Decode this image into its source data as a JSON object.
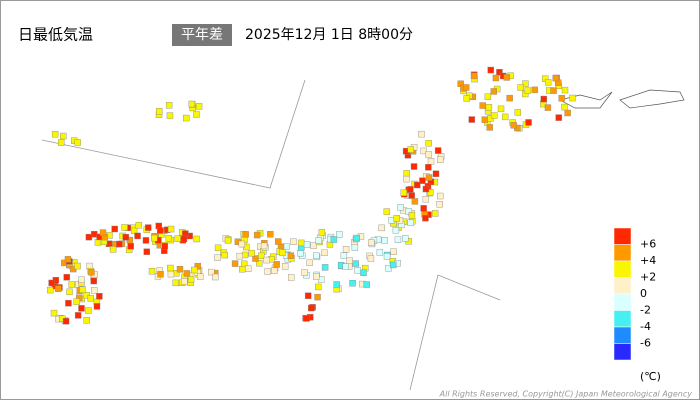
{
  "header": {
    "title": "日最低気温",
    "badge": "平年差",
    "datetime": "2025年12月 1日 8時00分"
  },
  "legend": {
    "colors": [
      "#ff2800",
      "#ff9900",
      "#faf500",
      "#fff0c8",
      "#d9ffff",
      "#46f0f0",
      "#1e8cff",
      "#2828ff"
    ],
    "labels": [
      "+6",
      "+4",
      "+2",
      "0",
      "-2",
      "-4",
      "-6"
    ],
    "unit": "(℃)"
  },
  "footer": {
    "copyright": "All Rights Reserved, Copyright(C) Japan Meteorological Agency"
  }
}
